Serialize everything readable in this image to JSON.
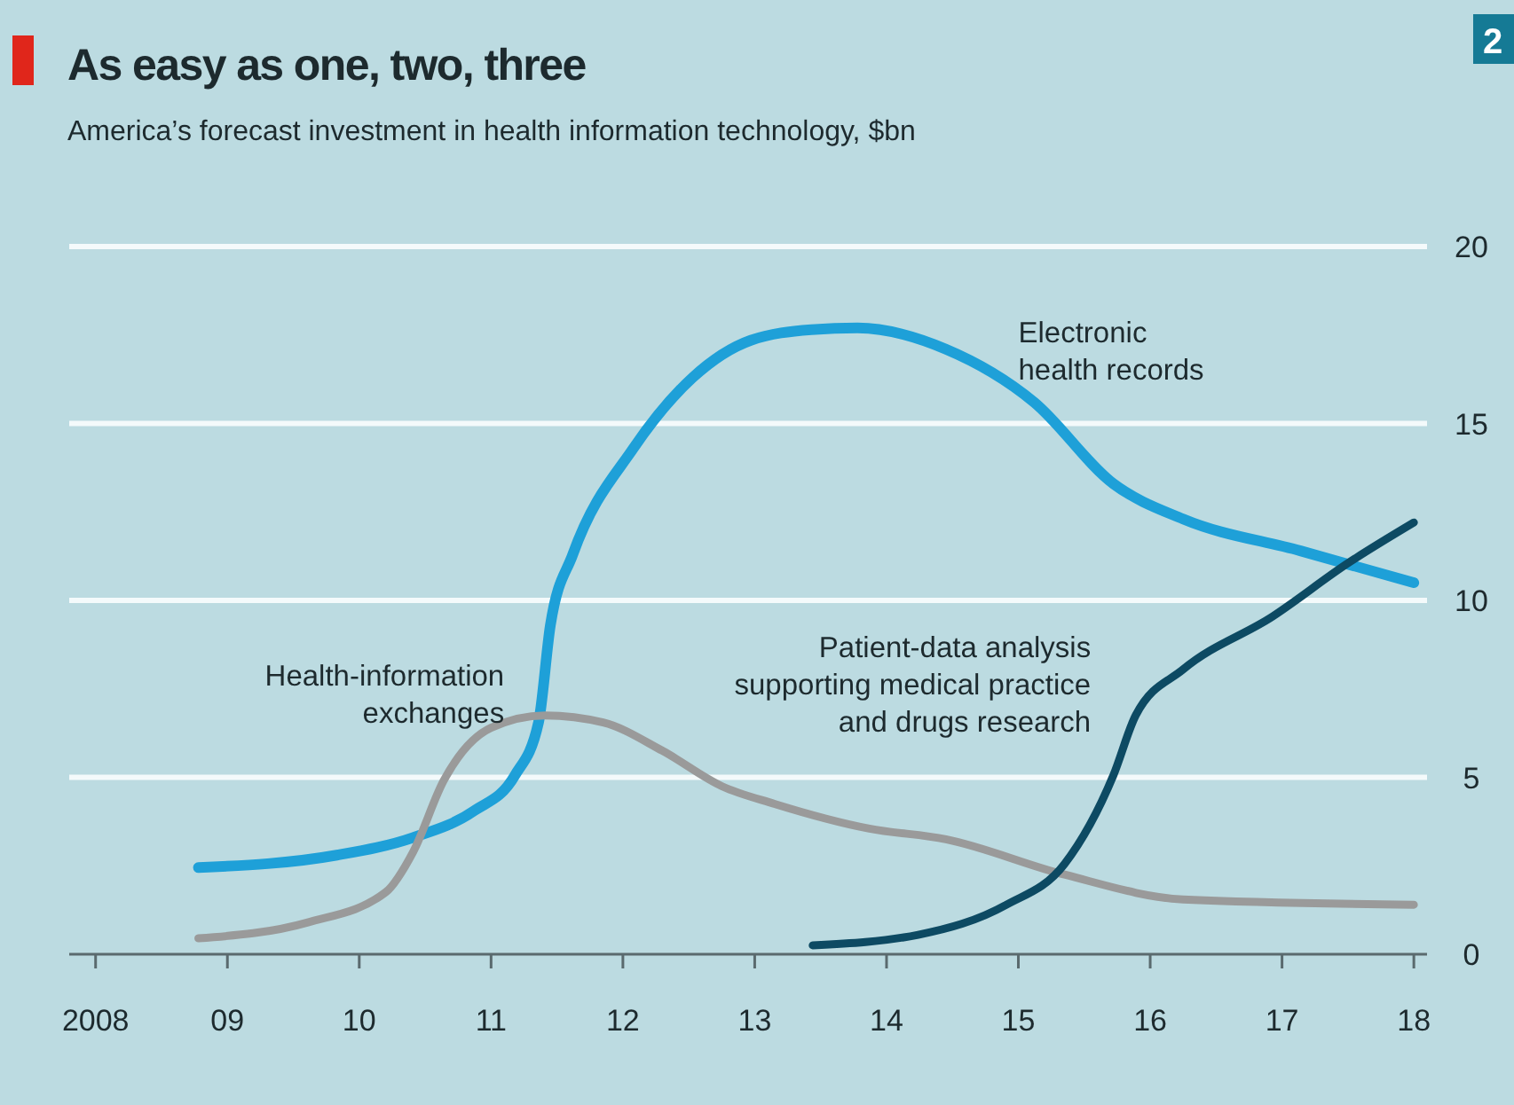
{
  "chart_data": {
    "type": "line",
    "title": "As easy as one, two, three",
    "subtitle": "America’s forecast investment in health information technology, $bn",
    "annotations": [
      "2"
    ],
    "xlim": [
      2007.8,
      2018.1
    ],
    "xticks": [
      2008,
      {
        "value": 2009,
        "label": "09"
      },
      {
        "value": 2010,
        "label": "10"
      },
      {
        "value": 2011,
        "label": "11"
      },
      {
        "value": 2012,
        "label": "12"
      },
      {
        "value": 2013,
        "label": "13"
      },
      {
        "value": 2014,
        "label": "14"
      },
      {
        "value": 2015,
        "label": "15"
      },
      {
        "value": 2016,
        "label": "16"
      },
      {
        "value": 2017,
        "label": "17"
      },
      {
        "value": 2018,
        "label": "18"
      }
    ],
    "ylim": [
      0,
      20
    ],
    "yticks": [
      0,
      5,
      10,
      15,
      20
    ],
    "grid": "y",
    "marker": "none",
    "line_style": "solid",
    "series": [
      {
        "name": "Electronic health records",
        "color": "#1ea0d8",
        "x": [
          2008.78,
          2009.83,
          2010.41,
          2010.87,
          2011.18,
          2011.36,
          2011.45,
          2011.62,
          2012.08,
          2012.53,
          2012.97,
          2013.43,
          2013.78,
          2014.45,
          2015.12,
          2015.72,
          2016.25,
          2017.14,
          2018.0
        ],
        "values": [
          2.45,
          2.8,
          3.3,
          4.05,
          5.05,
          6.55,
          9.3,
          11.3,
          14.3,
          16.3,
          17.35,
          17.65,
          17.7,
          17.1,
          15.6,
          13.3,
          12.3,
          11.4,
          10.5
        ]
      },
      {
        "name": "Health-information exchanges",
        "color": "#9a9a9a",
        "x": [
          2008.78,
          2009.61,
          2010.2,
          2010.41,
          2010.64,
          2011.0,
          2011.41,
          2011.85,
          2012.3,
          2012.75,
          2013.15,
          2013.87,
          2014.45,
          2015.35,
          2016.25,
          2018.0
        ],
        "values": [
          0.45,
          0.9,
          1.75,
          2.9,
          4.9,
          6.4,
          6.75,
          6.55,
          5.75,
          4.75,
          4.25,
          3.55,
          3.25,
          2.25,
          1.55,
          1.4
        ]
      },
      {
        "name": "Patient-data analysis supporting medical practice and drugs research",
        "color": "#0d4a63",
        "x": [
          2013.44,
          2014.24,
          2014.91,
          2015.35,
          2015.72,
          2015.89,
          2016.25,
          2016.93,
          2017.5,
          2018.0
        ],
        "values": [
          0.25,
          0.55,
          1.4,
          2.55,
          5.05,
          6.75,
          8.05,
          9.55,
          11.05,
          12.2
        ]
      }
    ]
  }
}
